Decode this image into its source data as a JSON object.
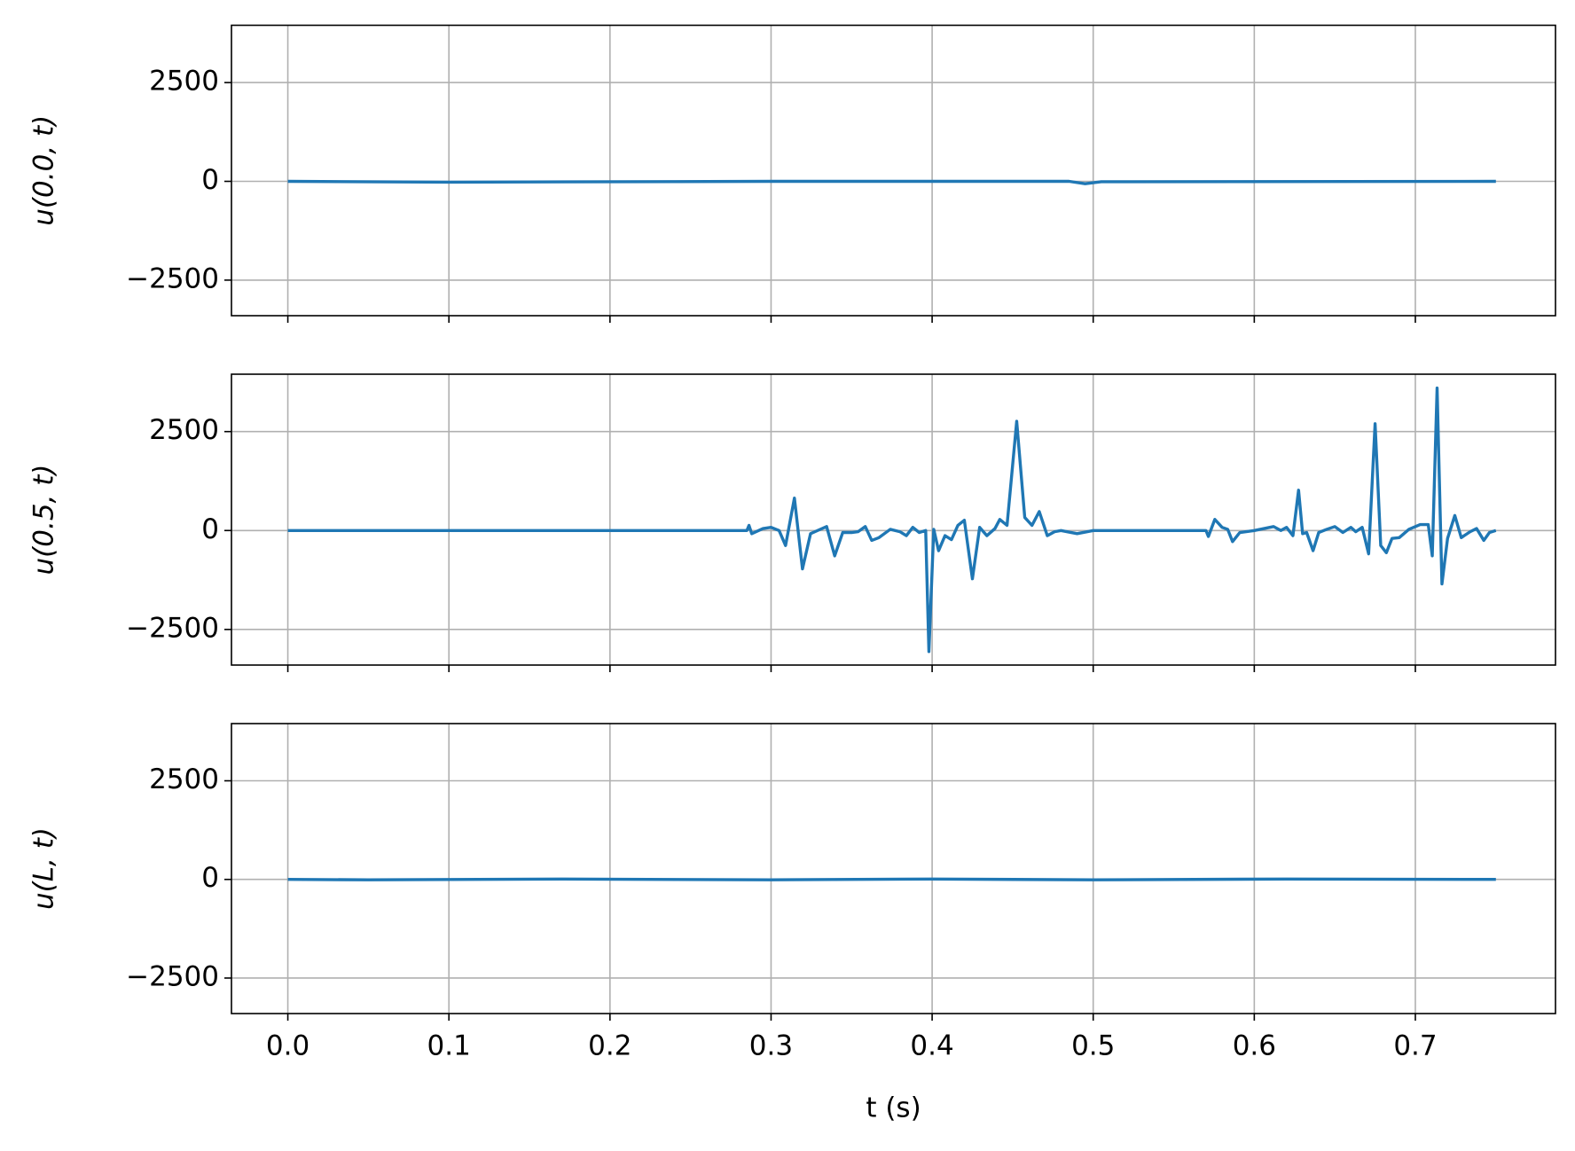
{
  "chart_data": [
    {
      "type": "line",
      "ylabel": "u(0.0, t)",
      "grid": true,
      "xlim": [
        -0.035,
        0.787
      ],
      "ylim": [
        -3400,
        3950
      ],
      "xticks": [
        0,
        0.1,
        0.2,
        0.3,
        0.4,
        0.5,
        0.6,
        0.7
      ],
      "yticks": [
        {
          "value": -2500,
          "label": "−2500"
        },
        0,
        2500
      ],
      "series": [
        {
          "color": "#1f77b4",
          "x": [
            0,
            0.1,
            0.3,
            0.485,
            0.495,
            0.505,
            0.75
          ],
          "values": [
            0,
            -20,
            0,
            0,
            -60,
            -10,
            0
          ]
        }
      ]
    },
    {
      "type": "line",
      "ylabel": "u(0.5, t)",
      "grid": true,
      "xlim": [
        -0.035,
        0.787
      ],
      "ylim": [
        -3400,
        3950
      ],
      "xticks": [
        0,
        0.1,
        0.2,
        0.3,
        0.4,
        0.5,
        0.6,
        0.7
      ],
      "yticks": [
        {
          "value": -2500,
          "label": "−2500"
        },
        0,
        2500
      ],
      "series": [
        {
          "color": "#1f77b4",
          "x": [
            0,
            0.285,
            0.2863,
            0.288,
            0.295,
            0.3,
            0.305,
            0.309,
            0.3145,
            0.3195,
            0.3245,
            0.33,
            0.3345,
            0.3395,
            0.3445,
            0.35,
            0.354,
            0.3585,
            0.3625,
            0.367,
            0.374,
            0.38,
            0.384,
            0.388,
            0.392,
            0.396,
            0.398,
            0.401,
            0.404,
            0.408,
            0.412,
            0.416,
            0.42,
            0.425,
            0.4295,
            0.434,
            0.439,
            0.442,
            0.4465,
            0.4525,
            0.4575,
            0.462,
            0.4665,
            0.4715,
            0.476,
            0.48,
            0.49,
            0.5,
            0.57,
            0.5715,
            0.5755,
            0.58,
            0.5835,
            0.5865,
            0.591,
            0.6,
            0.612,
            0.6165,
            0.62,
            0.624,
            0.6275,
            0.63,
            0.6325,
            0.6365,
            0.64,
            0.645,
            0.65,
            0.655,
            0.66,
            0.663,
            0.667,
            0.671,
            0.675,
            0.6785,
            0.682,
            0.6855,
            0.69,
            0.696,
            0.703,
            0.708,
            0.7105,
            0.7135,
            0.7165,
            0.72,
            0.7245,
            0.7285,
            0.734,
            0.738,
            0.7425,
            0.746,
            0.75
          ],
          "values": [
            0,
            0,
            130,
            -80,
            50,
            80,
            0,
            -380,
            820,
            -970,
            -80,
            20,
            100,
            -640,
            -50,
            -50,
            -30,
            100,
            -250,
            -180,
            30,
            -30,
            -130,
            80,
            -50,
            0,
            -3060,
            30,
            -510,
            -130,
            -230,
            130,
            260,
            -1220,
            80,
            -130,
            50,
            280,
            130,
            2760,
            330,
            130,
            480,
            -130,
            -30,
            0,
            -80,
            0,
            0,
            -150,
            280,
            80,
            30,
            -280,
            -50,
            0,
            100,
            0,
            80,
            -130,
            1020,
            -80,
            -50,
            -510,
            -50,
            30,
            100,
            -50,
            80,
            -30,
            80,
            -590,
            2700,
            -380,
            -560,
            -200,
            -180,
            30,
            150,
            150,
            -640,
            3600,
            -1350,
            -200,
            380,
            -180,
            -30,
            50,
            -250,
            -50,
            0
          ]
        }
      ]
    },
    {
      "type": "line",
      "ylabel": "u(L, t)",
      "xlabel": "t (s)",
      "grid": true,
      "xlim": [
        -0.035,
        0.787
      ],
      "ylim": [
        -3400,
        3950
      ],
      "xticks": [
        {
          "value": 0,
          "label": "0.0"
        },
        0.1,
        0.2,
        0.3,
        0.4,
        0.5,
        0.6,
        0.7
      ],
      "yticks": [
        {
          "value": -2500,
          "label": "−2500"
        },
        0,
        2500
      ],
      "series": [
        {
          "color": "#1f77b4",
          "x": [
            0,
            0.05,
            0.17,
            0.3,
            0.4,
            0.5,
            0.62,
            0.75
          ],
          "values": [
            0,
            -10,
            10,
            -10,
            10,
            -10,
            10,
            0
          ]
        }
      ]
    }
  ]
}
